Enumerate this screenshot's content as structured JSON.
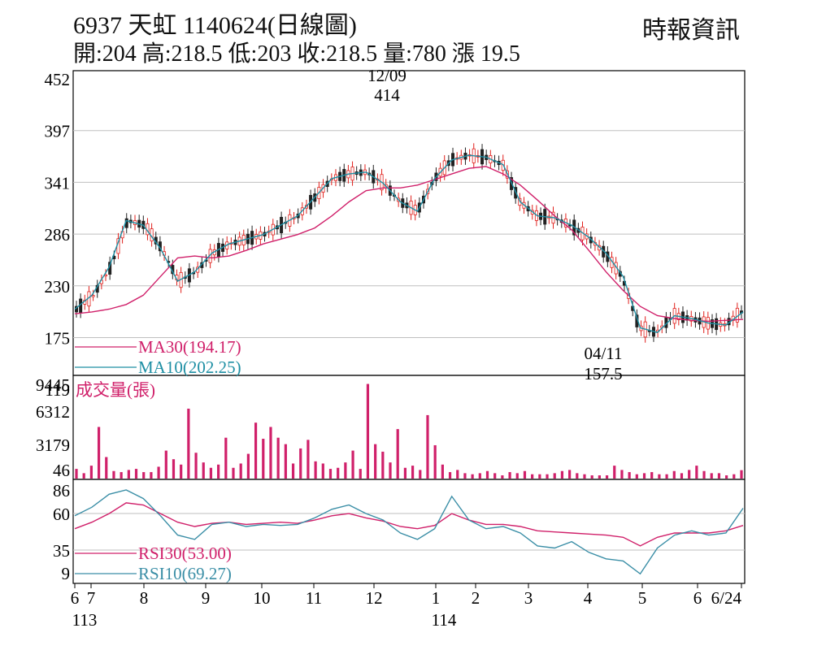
{
  "header": {
    "title": "6937  天虹 1140624(日線圖)",
    "ohlc": "開:204 高:218.5 低:203 收:218.5 量:780 漲 19.5",
    "source": "時報資訊"
  },
  "colors": {
    "up": "#e0201c",
    "down": "#222222",
    "ma30": "#d0206a",
    "ma10": "#1e8fa4",
    "volume": "#d0206a",
    "rsi30": "#d0206a",
    "rsi10": "#3a8ea6",
    "grid": "#bfbfbf"
  },
  "chart_data": [
    {
      "type": "line",
      "panel": "price",
      "ylim": [
        119,
        452
      ],
      "yticks": [
        "452",
        "397",
        "341",
        "286",
        "230",
        "175",
        "119"
      ],
      "xticks": [
        "6",
        "7",
        "8",
        "9",
        "10",
        "11",
        "12",
        "1",
        "2",
        "3",
        "4",
        "5",
        "6",
        "6/24"
      ],
      "xyears": [
        "113",
        "114"
      ],
      "annotations": {
        "high_date": "12/09",
        "high_value": "414",
        "low_date": "04/11",
        "low_value": "157.5"
      },
      "series": [
        {
          "name": "MA30(194.17)",
          "values": [
            200,
            202,
            205,
            210,
            220,
            240,
            260,
            262,
            260,
            262,
            268,
            275,
            280,
            285,
            292,
            305,
            320,
            332,
            335,
            335,
            338,
            344,
            350,
            356,
            358,
            350,
            338,
            322,
            305,
            290,
            268,
            245,
            225,
            208,
            198,
            195,
            193,
            192,
            193,
            194
          ]
        },
        {
          "name": "MA10(202.25)",
          "values": [
            205,
            220,
            250,
            300,
            295,
            270,
            235,
            245,
            265,
            275,
            280,
            285,
            295,
            305,
            325,
            345,
            350,
            352,
            340,
            320,
            310,
            345,
            365,
            370,
            368,
            360,
            320,
            305,
            303,
            295,
            282,
            265,
            240,
            185,
            180,
            198,
            195,
            190,
            188,
            202
          ]
        }
      ],
      "candles_summary": {
        "open": 204,
        "high": 218.5,
        "low": 203,
        "close": 218.5
      }
    },
    {
      "type": "bar",
      "panel": "volume",
      "title": "成交量(張)",
      "yticks": [
        "9445",
        "6312",
        "3179",
        "46"
      ],
      "ylim": [
        46,
        9445
      ],
      "values": [
        900,
        500,
        1200,
        4800,
        2000,
        700,
        600,
        800,
        900,
        600,
        600,
        1100,
        2600,
        1800,
        1300,
        6500,
        2400,
        1500,
        1000,
        1300,
        3800,
        1000,
        1400,
        2300,
        5200,
        3700,
        4800,
        3800,
        3200,
        1400,
        2800,
        3600,
        1600,
        1400,
        900,
        1000,
        1500,
        2600,
        900,
        8800,
        3200,
        2500,
        1500,
        4600,
        1000,
        1200,
        800,
        5900,
        3100,
        1300,
        600,
        800,
        500,
        400,
        500,
        700,
        500,
        300,
        600,
        500,
        700,
        400,
        400,
        400,
        500,
        700,
        800,
        500,
        400,
        300,
        300,
        300,
        1200,
        800,
        600,
        400,
        500,
        600,
        400,
        400,
        700,
        500,
        800,
        1200,
        700,
        500,
        500,
        300,
        400,
        780
      ]
    },
    {
      "type": "line",
      "panel": "rsi",
      "yticks": [
        "86",
        "60",
        "35",
        "9"
      ],
      "ylim": [
        0,
        95
      ],
      "series": [
        {
          "name": "RSI30(53.00)",
          "values": [
            50,
            56,
            64,
            74,
            72,
            64,
            56,
            52,
            55,
            56,
            54,
            55,
            56,
            55,
            58,
            62,
            64,
            60,
            57,
            52,
            50,
            53,
            64,
            58,
            54,
            54,
            52,
            48,
            47,
            46,
            45,
            44,
            42,
            34,
            42,
            46,
            46,
            46,
            48,
            53
          ]
        },
        {
          "name": "RSI10(69.27)",
          "values": [
            62,
            70,
            82,
            86,
            78,
            62,
            44,
            40,
            54,
            56,
            52,
            54,
            53,
            54,
            60,
            68,
            72,
            64,
            58,
            46,
            40,
            50,
            80,
            58,
            50,
            52,
            46,
            34,
            32,
            38,
            28,
            22,
            20,
            8,
            32,
            44,
            48,
            44,
            46,
            69
          ]
        }
      ]
    }
  ]
}
